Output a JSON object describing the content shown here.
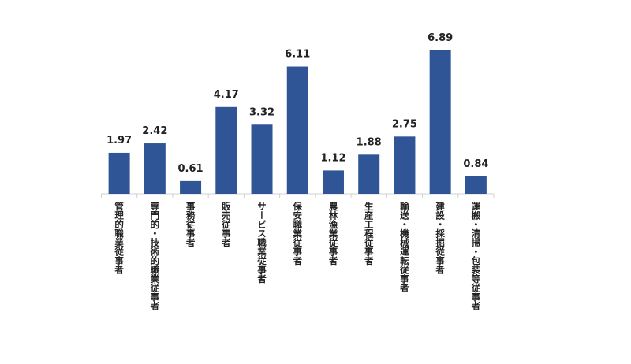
{
  "chart_data": {
    "type": "bar",
    "categories": [
      "管理的職業従事者",
      "専門的・技術的職業従事者",
      "事務従事者",
      "販売従事者",
      "サービス職業従事者",
      "保安職業従事者",
      "農林漁業従事者",
      "生産工程従事者",
      "輸送・機械運転従事者",
      "建設・採掘従事者",
      "運搬・清掃・包装等従事者"
    ],
    "values": [
      1.97,
      2.42,
      0.61,
      4.17,
      3.32,
      6.11,
      1.12,
      1.88,
      2.75,
      6.89,
      0.84
    ],
    "color": "#2f5597",
    "ylim": [
      0,
      7
    ]
  }
}
